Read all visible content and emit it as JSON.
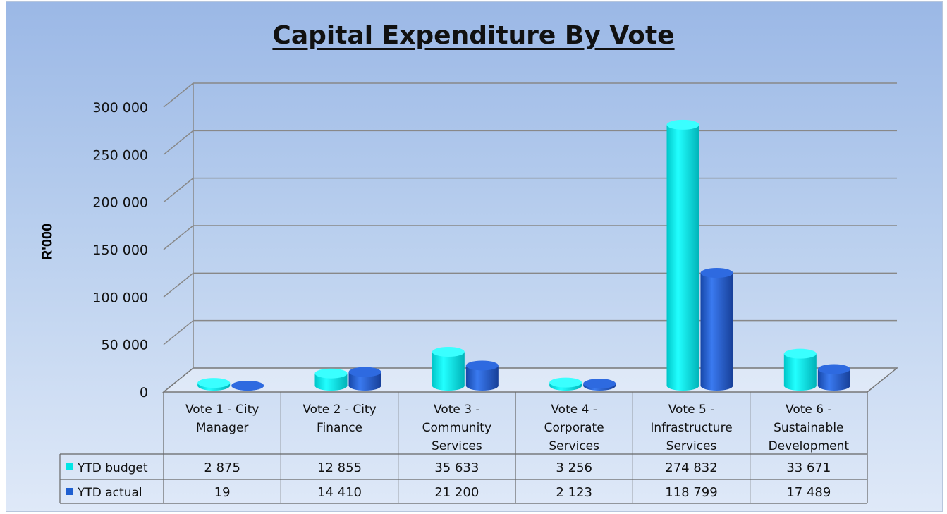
{
  "chart_data": {
    "type": "bar",
    "title": "Capital Expenditure By Vote",
    "xlabel": "",
    "ylabel": "R'000",
    "ylim": [
      0,
      300000
    ],
    "yticks": [
      0,
      50000,
      100000,
      150000,
      200000,
      250000,
      300000
    ],
    "ytick_labels": [
      "0",
      "50 000",
      "100 000",
      "150 000",
      "200 000",
      "250 000",
      "300 000"
    ],
    "grid": true,
    "legend": "data-table",
    "categories": [
      [
        "Vote 1 - City",
        "Manager"
      ],
      [
        "Vote 2 - City",
        "Finance"
      ],
      [
        "Vote 3 -",
        "Community",
        "Services"
      ],
      [
        "Vote 4 -",
        "Corporate",
        "Services"
      ],
      [
        "Vote 5 -",
        "Infrastructure",
        "Services"
      ],
      [
        "Vote 6 -",
        "Sustainable",
        "Development"
      ]
    ],
    "series": [
      {
        "name": "YTD budget",
        "color": "#00e5e5",
        "values": [
          2875,
          12855,
          35633,
          3256,
          274832,
          33671
        ],
        "labels": [
          "2 875",
          "12 855",
          "35 633",
          "3 256",
          "274 832",
          "33 671"
        ]
      },
      {
        "name": "YTD actual",
        "color": "#1f5fd0",
        "values": [
          19,
          14410,
          21200,
          2123,
          118799,
          17489
        ],
        "labels": [
          "19",
          "14 410",
          "21 200",
          "2 123",
          "118 799",
          "17 489"
        ]
      }
    ]
  }
}
